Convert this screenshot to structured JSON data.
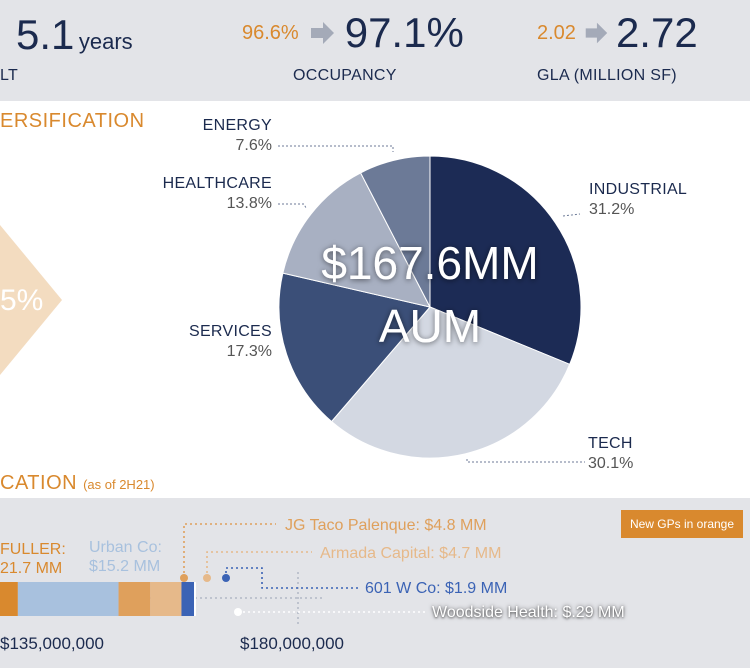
{
  "colors": {
    "navy": "#1b2a4e",
    "orange": "#d9892e",
    "band": "#e3e4e8",
    "fuller_bar": "#d9892e",
    "urban_bar": "#a8c1de",
    "jg_bar": "#dfa05c",
    "armada_bar": "#e6b98a",
    "w601_bar": "#3b63b5",
    "woodside_bar": "#ffffff",
    "note_box": "#d9892e"
  },
  "stats": {
    "wale": {
      "value": "5.1",
      "unit": "years",
      "label_fragment": "LT"
    },
    "occupancy": {
      "from": "96.6%",
      "to": "97.1%",
      "label": "OCCUPANCY"
    },
    "gla": {
      "from": "2.02",
      "to": "2.72",
      "label": "GLA (MILLION SF)"
    },
    "arrow_icon": "right-arrow-icon"
  },
  "diversification": {
    "section_title": "ERSIFICATION",
    "chevron_text": "5%"
  },
  "allocation": {
    "section_title": "CATION",
    "section_note": "(as of 2H21)",
    "note_box": "New GPs in orange"
  },
  "chart_data": [
    {
      "type": "pie",
      "title": "",
      "center_label_line1": "$167.6MM",
      "center_label_line2": "AUM",
      "slices": [
        {
          "name": "INDUSTRIAL",
          "percent_label": "31.2%",
          "value": 31.2,
          "color": "#1c2b55"
        },
        {
          "name": "TECH",
          "percent_label": "30.1%",
          "value": 30.1,
          "color": "#d3d8e2"
        },
        {
          "name": "SERVICES",
          "percent_label": "17.3%",
          "value": 17.3,
          "color": "#3b4f78"
        },
        {
          "name": "HEALTHCARE",
          "percent_label": "13.8%",
          "value": 13.8,
          "color": "#a8b0c2"
        },
        {
          "name": "ENERGY",
          "percent_label": "7.6%",
          "value": 7.6,
          "color": "#6c7a97"
        }
      ]
    },
    {
      "type": "bar",
      "orientation": "horizontal-stacked",
      "x_ticks": [
        "$135,000,000",
        "$180,000,000"
      ],
      "x_tick_values": [
        135000000,
        180000000
      ],
      "series": [
        {
          "label_line1": "FULLER:",
          "label_line2": "21.7 MM",
          "value_mm": 21.7,
          "color": "#d9892e",
          "new_gp": true
        },
        {
          "label_line1": "Urban Co:",
          "label_line2": "$15.2 MM",
          "value_mm": 15.2,
          "color": "#a8c1de",
          "new_gp": false
        },
        {
          "label": "JG Taco Palenque: $4.8 MM",
          "value_mm": 4.8,
          "color": "#dfa05c",
          "new_gp": true
        },
        {
          "label": "Armada Capital: $4.7 MM",
          "value_mm": 4.7,
          "color": "#e6b98a",
          "new_gp": true
        },
        {
          "label": "601 W Co: $1.9 MM",
          "value_mm": 1.9,
          "color": "#3b63b5",
          "new_gp": false
        },
        {
          "label": "Woodside Health: $.29 MM",
          "value_mm": 0.29,
          "color": "#ffffff",
          "new_gp": false
        }
      ]
    }
  ]
}
